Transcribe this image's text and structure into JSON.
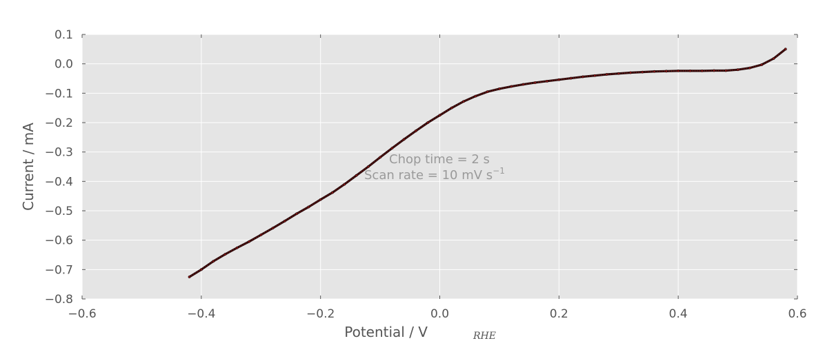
{
  "chart_data": {
    "type": "line",
    "xlabel": "Potential / V",
    "xlabel_subscript": "RHE",
    "ylabel": "Current / mA",
    "xlim": [
      -0.6,
      0.6
    ],
    "ylim": [
      -0.8,
      0.1
    ],
    "xticks": [
      -0.6,
      -0.4,
      -0.2,
      0.0,
      0.2,
      0.4,
      0.6
    ],
    "xtick_labels": [
      "−0.6",
      "−0.4",
      "−0.2",
      "0.0",
      "0.2",
      "0.4",
      "0.6"
    ],
    "yticks": [
      0.1,
      0.0,
      -0.1,
      -0.2,
      -0.3,
      -0.4,
      -0.5,
      -0.6,
      -0.7,
      -0.8
    ],
    "ytick_labels": [
      "0.1",
      "0.0",
      "−0.1",
      "−0.2",
      "−0.3",
      "−0.4",
      "−0.5",
      "−0.6",
      "−0.7",
      "−0.8"
    ],
    "grid": true,
    "annotations": [
      "Chop time = 2 s",
      "Scan rate = 10 mV s",
      "−1"
    ],
    "series": [
      {
        "color": "#8b1a1a",
        "x": [
          -0.42,
          -0.4,
          -0.38,
          -0.36,
          -0.34,
          -0.32,
          -0.3,
          -0.28,
          -0.26,
          -0.24,
          -0.22,
          -0.2,
          -0.18,
          -0.16,
          -0.14,
          -0.12,
          -0.1,
          -0.08,
          -0.06,
          -0.04,
          -0.02,
          0.0,
          0.02,
          0.04,
          0.06,
          0.08,
          0.1,
          0.12,
          0.14,
          0.16,
          0.18,
          0.2,
          0.22,
          0.24,
          0.26,
          0.28,
          0.3,
          0.32,
          0.34,
          0.36,
          0.38,
          0.4,
          0.42,
          0.44,
          0.46,
          0.48,
          0.5,
          0.52,
          0.54,
          0.56,
          0.58
        ],
        "y": [
          -0.725,
          -0.7,
          -0.672,
          -0.648,
          -0.626,
          -0.605,
          -0.582,
          -0.559,
          -0.535,
          -0.51,
          -0.487,
          -0.462,
          -0.438,
          -0.41,
          -0.38,
          -0.35,
          -0.318,
          -0.287,
          -0.257,
          -0.228,
          -0.2,
          -0.175,
          -0.15,
          -0.128,
          -0.11,
          -0.095,
          -0.085,
          -0.077,
          -0.07,
          -0.064,
          -0.059,
          -0.054,
          -0.049,
          -0.044,
          -0.04,
          -0.036,
          -0.033,
          -0.03,
          -0.028,
          -0.026,
          -0.025,
          -0.024,
          -0.024,
          -0.024,
          -0.023,
          -0.023,
          -0.02,
          -0.014,
          -0.003,
          0.018,
          0.05
        ]
      }
    ]
  }
}
